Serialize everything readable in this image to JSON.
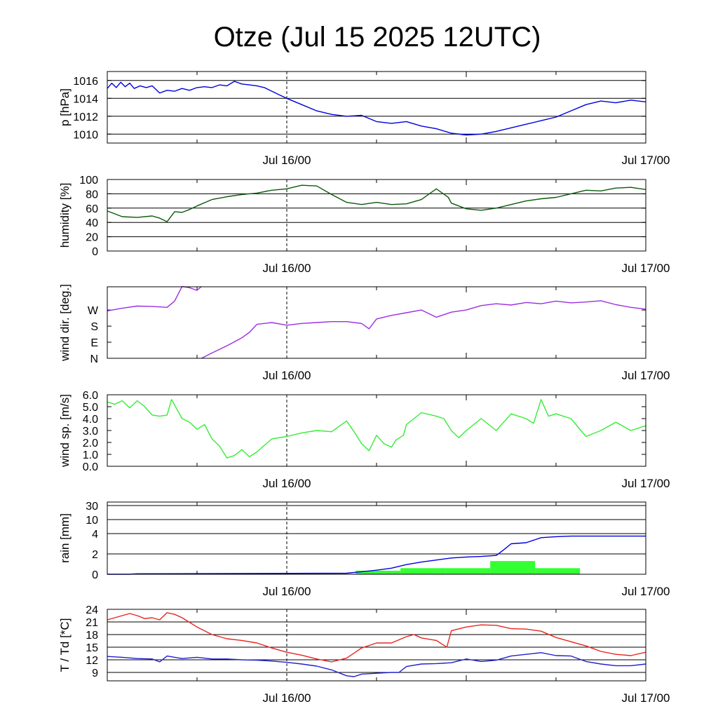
{
  "chart_data": {
    "title": "Otze (Jul 15 2025 12UTC)",
    "x_tick_labels": [
      "Jul 16/00",
      "Jul 17/00"
    ],
    "x_range_hours": [
      0,
      36
    ],
    "panels": [
      {
        "type": "line",
        "ylabel": "p [hPa]",
        "ylim": [
          1009,
          1017
        ],
        "yticks": [
          1010,
          1012,
          1014,
          1016
        ],
        "ytick_labels": [
          "1010",
          "1012",
          "1014",
          "1016"
        ],
        "grid": true,
        "series": [
          {
            "color": "#0000dd",
            "x": [
              0,
              0.3,
              0.6,
              0.9,
              1.2,
              1.5,
              1.8,
              2.2,
              2.6,
              3,
              3.5,
              4,
              4.5,
              5,
              5.5,
              6,
              6.5,
              7,
              7.5,
              8,
              8.5,
              9,
              9.5,
              10,
              10.5,
              11,
              11.5,
              12,
              13,
              14,
              15,
              16,
              17,
              18,
              19,
              20,
              21,
              22,
              23,
              24,
              25,
              26,
              27,
              28,
              29,
              30,
              31,
              32,
              33,
              34,
              35,
              36
            ],
            "y": [
              1015.1,
              1015.7,
              1015.2,
              1015.8,
              1015.3,
              1015.7,
              1015.1,
              1015.4,
              1015.2,
              1015.4,
              1014.6,
              1014.9,
              1014.8,
              1015.1,
              1014.9,
              1015.2,
              1015.3,
              1015.2,
              1015.5,
              1015.4,
              1015.9,
              1015.6,
              1015.5,
              1015.4,
              1015.2,
              1014.8,
              1014.4,
              1014.0,
              1013.3,
              1012.6,
              1012.2,
              1012.0,
              1012.1,
              1011.4,
              1011.2,
              1011.4,
              1010.9,
              1010.6,
              1010.1,
              1009.9,
              1010.0,
              1010.3,
              1010.7,
              1011.1,
              1011.5,
              1011.9,
              1012.6,
              1013.3,
              1013.7,
              1013.5,
              1013.8,
              1013.6
            ]
          }
        ]
      },
      {
        "type": "line",
        "ylabel": "humidity [%]",
        "ylim": [
          0,
          100
        ],
        "yticks": [
          0,
          20,
          40,
          60,
          80,
          100
        ],
        "ytick_labels": [
          "0",
          "20",
          "40",
          "60",
          "80",
          "100"
        ],
        "grid": true,
        "series": [
          {
            "color": "#0b5a0b",
            "x": [
              0,
              1,
              2,
              3,
              3.5,
              4,
              4.5,
              5,
              5.5,
              6,
              7,
              8,
              9,
              10,
              11,
              12,
              13,
              14,
              15,
              16,
              17,
              18,
              19,
              20,
              21,
              22,
              22.8,
              23,
              24,
              25,
              26,
              27,
              28,
              29,
              30,
              31,
              32,
              33,
              34,
              35,
              36
            ],
            "y": [
              56,
              48,
              47,
              49,
              46,
              41,
              55,
              54,
              58,
              63,
              72,
              76,
              79,
              81,
              85,
              87,
              92,
              91,
              79,
              68,
              65,
              68,
              65,
              66,
              72,
              87,
              75,
              67,
              59,
              57,
              60,
              65,
              70,
              73,
              75,
              80,
              85,
              84,
              88,
              89,
              86
            ]
          }
        ]
      },
      {
        "type": "line",
        "ylabel": "wind dir. [deg.]",
        "ylim": [
          0,
          400
        ],
        "yticks": [
          0,
          90,
          180,
          270
        ],
        "ytick_labels": [
          "N",
          "E",
          "S",
          "W"
        ],
        "grid": false,
        "series": [
          {
            "color": "#9b30e0",
            "x": [
              0,
              1,
              2,
              3,
              4,
              4.5,
              5,
              5.5,
              6,
              6.3
            ],
            "y": [
              265,
              280,
              292,
              290,
              285,
              320,
              402,
              395,
              380,
              402
            ]
          },
          {
            "color": "#9b30e0",
            "x": [
              6.3,
              7,
              8,
              9,
              9.5,
              10,
              11,
              12,
              13,
              14,
              15,
              16,
              17,
              17.5,
              18,
              19,
              20,
              21,
              22,
              23,
              24,
              25,
              26,
              27,
              28,
              29,
              30,
              31,
              32,
              33,
              34,
              35,
              36
            ],
            "y": [
              0,
              30,
              70,
              115,
              145,
              190,
              200,
              185,
              195,
              200,
              205,
              205,
              195,
              165,
              220,
              240,
              255,
              270,
              230,
              258,
              270,
              295,
              305,
              298,
              312,
              305,
              320,
              310,
              315,
              322,
              300,
              285,
              275
            ]
          }
        ]
      },
      {
        "type": "line",
        "ylabel": "wind sp. [m/s]",
        "ylim": [
          0,
          6
        ],
        "yticks": [
          0,
          1,
          2,
          3,
          4,
          5,
          6
        ],
        "ytick_labels": [
          "0.0",
          "1.0",
          "2.0",
          "3.0",
          "4.0",
          "5.0",
          "6.0"
        ],
        "grid": false,
        "series": [
          {
            "color": "#33ee33",
            "x": [
              0,
              0.5,
              1,
              1.5,
              2,
              2.5,
              3,
              3.5,
              4,
              4.3,
              5,
              5.5,
              6,
              6.5,
              7,
              7.5,
              8,
              8.5,
              9,
              9.5,
              10,
              11,
              12,
              13,
              14,
              15,
              16,
              16.5,
              17,
              17.5,
              18,
              18.5,
              19,
              19.3,
              19.8,
              20,
              21,
              22,
              22.5,
              23,
              23.5,
              24,
              25,
              26,
              27,
              28,
              28.5,
              29,
              29.5,
              30,
              31,
              32,
              33,
              34,
              35,
              36
            ],
            "y": [
              5.4,
              5.2,
              5.5,
              4.9,
              5.5,
              5.0,
              4.3,
              4.2,
              4.3,
              5.6,
              4.0,
              3.7,
              3.1,
              3.5,
              2.3,
              1.7,
              0.7,
              0.9,
              1.4,
              0.8,
              1.2,
              2.3,
              2.5,
              2.8,
              3.0,
              2.9,
              3.8,
              2.9,
              1.9,
              1.3,
              2.6,
              1.9,
              1.6,
              2.2,
              2.6,
              3.5,
              4.5,
              4.2,
              4.0,
              3.0,
              2.4,
              3.0,
              4.0,
              3.0,
              4.4,
              4.0,
              3.6,
              5.6,
              4.2,
              4.4,
              4.0,
              2.5,
              3.0,
              3.7,
              3.0,
              3.4
            ]
          }
        ]
      },
      {
        "type": "bar+line",
        "ylabel": "rain [mm]",
        "ytick_labels": [
          "0",
          "2",
          "4",
          "10",
          "30"
        ],
        "grid": true,
        "bars": {
          "color": "#33ff33",
          "x_start": [
            16.6,
            19.6,
            22.6,
            25.6,
            28.6
          ],
          "x_end": [
            19.6,
            22.6,
            25.6,
            28.6,
            31.6
          ],
          "values": [
            0.35,
            0.6,
            0.6,
            1.3,
            0.6
          ]
        },
        "series": [
          {
            "color": "#0000dd",
            "x": [
              0,
              1.5,
              2,
              16,
              17,
              18,
              19,
              20,
              21,
              22,
              23,
              24,
              25,
              26,
              26.5,
              27,
              28,
              29,
              30,
              31,
              36
            ],
            "y": [
              0,
              0,
              0.05,
              0.1,
              0.25,
              0.4,
              0.6,
              0.95,
              1.2,
              1.4,
              1.6,
              1.7,
              1.75,
              1.85,
              2.4,
              3.0,
              3.1,
              3.6,
              3.7,
              3.75,
              3.75
            ]
          }
        ]
      },
      {
        "type": "line",
        "ylabel": "T / Td [*C]",
        "ylim": [
          7,
          24
        ],
        "yticks": [
          9,
          12,
          15,
          18,
          21,
          24
        ],
        "ytick_labels": [
          "9",
          "12",
          "15",
          "18",
          "21",
          "24"
        ],
        "grid": true,
        "series": [
          {
            "color": "#e8251f",
            "x": [
              0,
              1,
              1.5,
              2,
              2.5,
              3,
              3.5,
              4,
              4.5,
              5,
              6,
              7,
              8,
              9,
              10,
              11,
              12,
              13,
              14,
              15,
              16,
              17,
              18,
              19,
              20,
              20.5,
              21,
              22,
              22.7,
              23,
              24,
              25,
              26,
              27,
              28,
              29,
              30,
              31,
              32,
              33,
              34,
              35,
              36
            ],
            "y": [
              21.5,
              22.5,
              23.0,
              22.5,
              21.8,
              22.0,
              21.5,
              23.2,
              22.8,
              22.0,
              19.8,
              18.0,
              17.0,
              16.6,
              16.0,
              14.8,
              13.8,
              13.1,
              12.2,
              11.5,
              12.4,
              14.8,
              16.0,
              16.0,
              17.5,
              18.0,
              17.2,
              16.6,
              15.0,
              18.9,
              19.8,
              20.3,
              20.2,
              19.4,
              19.3,
              18.8,
              17.3,
              16.3,
              15.3,
              14.0,
              13.3,
              13.0,
              13.8
            ]
          },
          {
            "color": "#2020cc",
            "x": [
              0,
              1,
              2,
              3,
              3.5,
              4,
              5,
              6,
              7,
              8,
              9,
              10,
              11,
              12,
              13,
              14,
              15,
              16,
              16.5,
              17,
              18,
              19,
              19.5,
              20,
              21,
              22,
              23,
              24,
              25,
              26,
              27,
              28,
              29,
              30,
              31,
              32,
              33,
              34,
              35,
              36
            ],
            "y": [
              12.8,
              12.6,
              12.3,
              12.2,
              11.5,
              12.9,
              12.3,
              12.6,
              12.2,
              12.2,
              12.0,
              11.9,
              11.7,
              11.4,
              11.0,
              10.5,
              9.6,
              8.2,
              8.0,
              8.6,
              8.8,
              9.0,
              9.0,
              10.4,
              11.0,
              11.1,
              11.3,
              12.2,
              11.6,
              11.9,
              12.9,
              13.3,
              13.7,
              13.0,
              12.9,
              11.6,
              11.0,
              10.6,
              10.6,
              11.0
            ]
          }
        ]
      }
    ]
  }
}
